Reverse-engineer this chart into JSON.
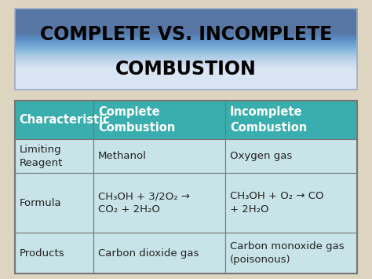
{
  "title_line1": "COMPLETE VS. INCOMPLETE",
  "title_line2": "COMBUSTION",
  "bg_color": "#ddd5c0",
  "title_bg_color": "#b8cce8",
  "title_border_color": "#9aaac8",
  "header_color": "#3aaeae",
  "row_color": "#c8e4e8",
  "border_color": "#777777",
  "header_text_color": "#ffffff",
  "body_text_color": "#222222",
  "headers": [
    "Characteristic",
    "Complete\nCombustion",
    "Incomplete\nCombustion"
  ],
  "row0_col0": "Limiting\nReagent",
  "row0_col1": "Methanol",
  "row0_col2": "Oxygen gas",
  "row1_col0": "Formula",
  "row1_col1_l1": "CH₃OH + 3/2O₂ →",
  "row1_col1_l2": "CO₂ + 2H₂O",
  "row1_col2_l1": "CH₃OH + O₂ → CO",
  "row1_col2_l2": "+ 2H₂O",
  "row2_col0": "Products",
  "row2_col1": "Carbon dioxide gas",
  "row2_col2": "Carbon monoxide gas\n(poisonous)",
  "font_size_title": 17,
  "font_size_header": 10.5,
  "font_size_body": 9.5
}
